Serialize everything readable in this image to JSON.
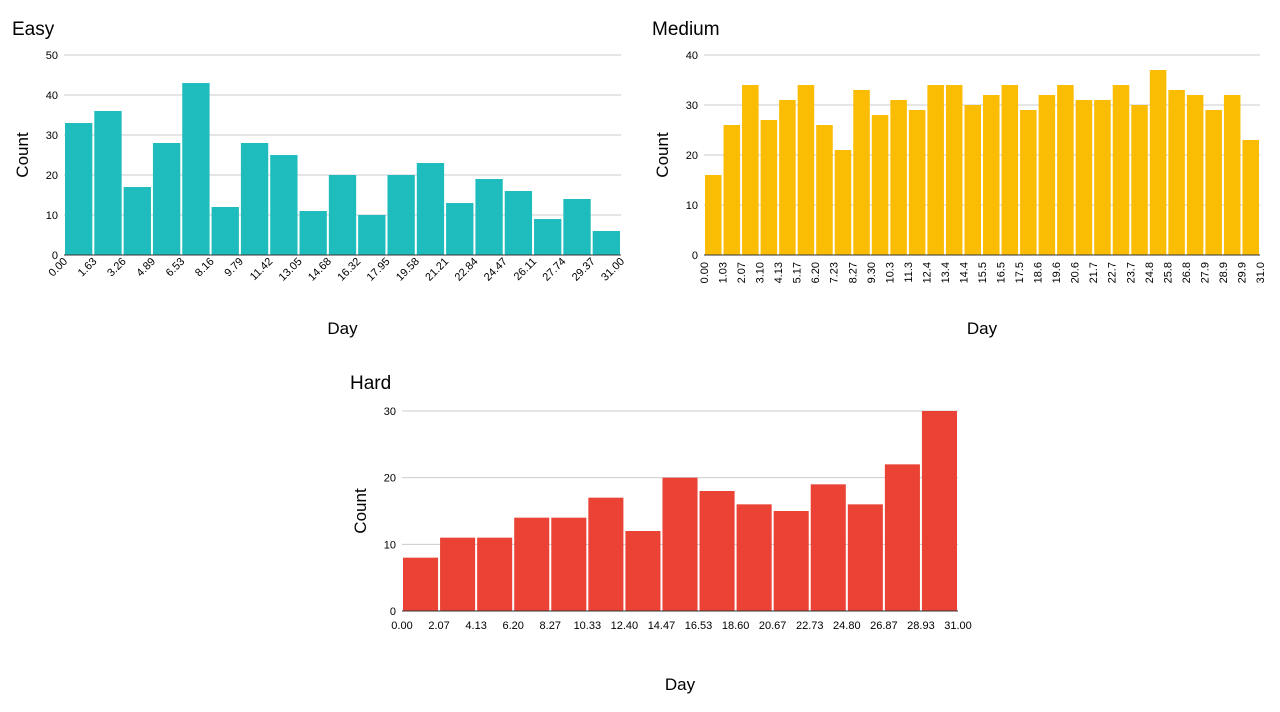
{
  "chart_data": [
    {
      "id": "easy",
      "type": "bar",
      "title": "Easy",
      "xlabel": "Day",
      "ylabel": "Count",
      "ylim": [
        0,
        50
      ],
      "yticks": [
        0,
        10,
        20,
        30,
        40,
        50
      ],
      "xticks": [
        "0.00",
        "1.63",
        "3.26",
        "4.89",
        "6.53",
        "8.16",
        "9.79",
        "11.42",
        "13.05",
        "14.68",
        "16.32",
        "17.95",
        "19.58",
        "21.21",
        "22.84",
        "24.47",
        "26.11",
        "27.74",
        "29.37",
        "31.00"
      ],
      "xtick_rotation": -45,
      "color": "#1ebcbc",
      "grid": true,
      "values": [
        33,
        36,
        17,
        28,
        43,
        12,
        28,
        25,
        11,
        20,
        10,
        20,
        23,
        13,
        19,
        16,
        9,
        14,
        6
      ]
    },
    {
      "id": "medium",
      "type": "bar",
      "title": "Medium",
      "xlabel": "Day",
      "ylabel": "Count",
      "ylim": [
        0,
        40
      ],
      "yticks": [
        0,
        10,
        20,
        30,
        40
      ],
      "xticks": [
        "0.00",
        "1.03",
        "2.07",
        "3.10",
        "4.13",
        "5.17",
        "6.20",
        "7.23",
        "8.27",
        "9.30",
        "10.3",
        "11.3",
        "12.4",
        "13.4",
        "14.4",
        "15.5",
        "16.5",
        "17.5",
        "18.6",
        "19.6",
        "20.6",
        "21.7",
        "22.7",
        "23.7",
        "24.8",
        "25.8",
        "26.8",
        "27.9",
        "28.9",
        "29.9",
        "31.0"
      ],
      "xtick_rotation": -90,
      "color": "#fbbc04",
      "grid": true,
      "values": [
        16,
        26,
        34,
        27,
        31,
        34,
        26,
        21,
        33,
        28,
        31,
        29,
        34,
        34,
        30,
        32,
        34,
        29,
        32,
        34,
        31,
        31,
        34,
        30,
        37,
        33,
        32,
        29,
        32,
        23
      ]
    },
    {
      "id": "hard",
      "type": "bar",
      "title": "Hard",
      "xlabel": "Day",
      "ylabel": "Count",
      "ylim": [
        0,
        30
      ],
      "yticks": [
        0,
        10,
        20,
        30
      ],
      "xticks": [
        "0.00",
        "2.07",
        "4.13",
        "6.20",
        "8.27",
        "10.33",
        "12.40",
        "14.47",
        "16.53",
        "18.60",
        "20.67",
        "22.73",
        "24.80",
        "26.87",
        "28.93",
        "31.00"
      ],
      "xtick_rotation": 0,
      "color": "#ea4335",
      "grid": true,
      "values": [
        8,
        11,
        11,
        14,
        14,
        17,
        12,
        20,
        18,
        16,
        15,
        19,
        16,
        22,
        30
      ]
    }
  ]
}
